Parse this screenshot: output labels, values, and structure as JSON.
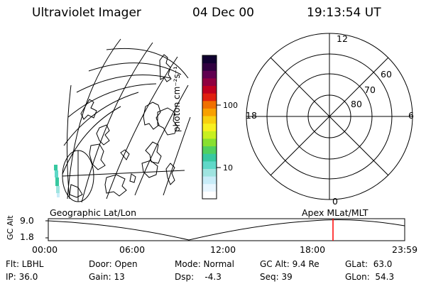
{
  "header": {
    "instrument": "Ultraviolet Imager",
    "date": "04 Dec 00",
    "time": "19:13:54 UT"
  },
  "colorbar": {
    "label": "photon cm⁻²s⁻¹",
    "ticks": [
      "100",
      "10"
    ],
    "colors": [
      "#ffffff",
      "#e8f6ff",
      "#c8ecf8",
      "#9fe4e0",
      "#5fd8c8",
      "#38c8a0",
      "#50d060",
      "#88e030",
      "#c8f020",
      "#f8f020",
      "#f8d010",
      "#f8a000",
      "#f07000",
      "#e02010",
      "#c00020",
      "#900040",
      "#600050",
      "#300040",
      "#100030"
    ]
  },
  "polar": {
    "lat_labels": [
      "80",
      "70",
      "60"
    ],
    "mlt_labels": {
      "top": "12",
      "left": "18",
      "right": "6",
      "bottom": "0"
    }
  },
  "map": {
    "left_label": "Geographic Lat/Lon",
    "right_label": "Apex MLat/MLT"
  },
  "orbit": {
    "y_axis_title": "GC Alt",
    "y_ticks": [
      "9.0",
      "1.8"
    ],
    "x_ticks": [
      "00:00",
      "06:00",
      "12:00",
      "18:00",
      "23:59"
    ],
    "current_time_color": "#ff0000"
  },
  "info": {
    "filter": "Flt: LBHL",
    "ip": "IP: 36.0",
    "door": "Door: Open",
    "gain": "Gain: 13",
    "mode": "Mode: Normal",
    "dsp": "Dsp:    -4.3",
    "gc_alt": "GC Alt: 9.4 Re",
    "seq": "Seq: 39",
    "glat": "GLat:  63.0",
    "glon": "GLon:  54.3"
  }
}
